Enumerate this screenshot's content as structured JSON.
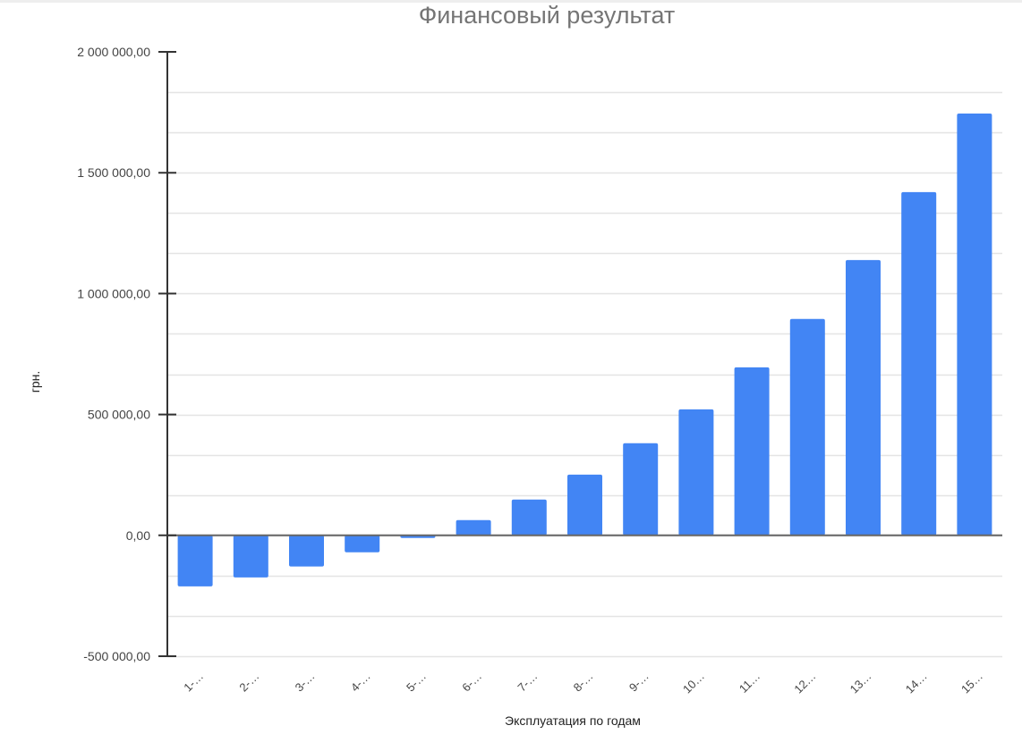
{
  "chart_data": {
    "type": "bar",
    "title": "Финансовый результат",
    "xlabel": "Эксплуатация по годам",
    "ylabel": "грн.",
    "categories": [
      "1-…",
      "2-…",
      "3-…",
      "4-…",
      "5-…",
      "6-…",
      "7-…",
      "8-…",
      "9-…",
      "10…",
      "11…",
      "12…",
      "13…",
      "14…",
      "15…"
    ],
    "series": [
      {
        "name": "Финансовый результат",
        "color": "#4285F4",
        "values": [
          -211000,
          -174000,
          -129000,
          -70000,
          -11000,
          63000,
          148000,
          251000,
          381000,
          521000,
          695000,
          895000,
          1139000,
          1420000,
          1745000
        ]
      }
    ],
    "ylim": [
      -500000,
      2000000
    ],
    "yticks": [
      -500000,
      0,
      500000,
      1000000,
      1500000,
      2000000
    ],
    "ytick_labels": [
      "-500 000,00",
      "0,00",
      "500 000,00",
      "1 000 000,00",
      "1 500 000,00",
      "2 000 000,00"
    ],
    "minor_gridline_step": 166667,
    "grid": true,
    "legend": "none"
  }
}
